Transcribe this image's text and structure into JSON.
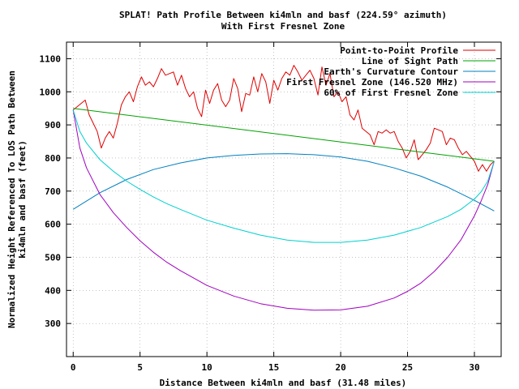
{
  "chart_data": {
    "type": "line",
    "title": "SPLAT! Path Profile Between ki4mln and basf (224.59° azimuth)",
    "subtitle": "With First Fresnel Zone",
    "xlabel": "Distance Between ki4mln and basf (31.48 miles)",
    "ylabel": "Normalized Height Referenced To LOS Path Between",
    "ylabel2": "ki4mln and basf (feet)",
    "xlim": [
      -0.5,
      32
    ],
    "ylim": [
      200,
      1150
    ],
    "x_ticks": [
      0,
      5,
      10,
      15,
      20,
      25,
      30
    ],
    "y_ticks": [
      300,
      400,
      500,
      600,
      700,
      800,
      900,
      1000,
      1100
    ],
    "grid": true,
    "legend_position": "top-right",
    "series": [
      {
        "name": "Point-to-Point Profile",
        "color": "#e00000",
        "x": [
          0,
          0.3,
          0.6,
          0.9,
          1.2,
          1.5,
          1.8,
          2.1,
          2.4,
          2.7,
          3.0,
          3.3,
          3.6,
          3.9,
          4.2,
          4.5,
          4.8,
          5.1,
          5.4,
          5.7,
          6.0,
          6.3,
          6.6,
          6.9,
          7.2,
          7.5,
          7.8,
          8.1,
          8.4,
          8.7,
          9.0,
          9.3,
          9.6,
          9.9,
          10.2,
          10.5,
          10.8,
          11.1,
          11.4,
          11.7,
          12.0,
          12.3,
          12.6,
          12.9,
          13.2,
          13.5,
          13.8,
          14.1,
          14.4,
          14.7,
          15.0,
          15.3,
          15.6,
          15.9,
          16.2,
          16.5,
          16.8,
          17.1,
          17.4,
          17.7,
          18.0,
          18.3,
          18.6,
          18.9,
          19.2,
          19.5,
          19.8,
          20.1,
          20.4,
          20.7,
          21.0,
          21.3,
          21.6,
          21.9,
          22.2,
          22.5,
          22.8,
          23.1,
          23.4,
          23.7,
          24.0,
          24.3,
          24.6,
          24.9,
          25.2,
          25.5,
          25.8,
          26.1,
          26.4,
          26.7,
          27.0,
          27.3,
          27.6,
          27.9,
          28.2,
          28.5,
          28.8,
          29.1,
          29.4,
          29.7,
          30.0,
          30.3,
          30.6,
          30.9,
          31.2,
          31.48
        ],
        "y": [
          945,
          955,
          965,
          975,
          930,
          905,
          880,
          830,
          860,
          880,
          860,
          905,
          960,
          985,
          1000,
          970,
          1015,
          1045,
          1020,
          1030,
          1015,
          1040,
          1070,
          1050,
          1055,
          1060,
          1020,
          1050,
          1010,
          985,
          1000,
          950,
          925,
          1005,
          965,
          1005,
          1025,
          975,
          955,
          975,
          1040,
          1010,
          940,
          995,
          990,
          1045,
          1000,
          1055,
          1030,
          965,
          1035,
          1005,
          1040,
          1060,
          1050,
          1080,
          1060,
          1035,
          1050,
          1065,
          1040,
          990,
          1075,
          1020,
          1055,
          985,
          1000,
          970,
          985,
          930,
          915,
          945,
          890,
          880,
          870,
          840,
          880,
          875,
          885,
          875,
          880,
          850,
          830,
          800,
          820,
          855,
          795,
          810,
          825,
          845,
          890,
          885,
          880,
          840,
          860,
          855,
          830,
          810,
          820,
          805,
          790,
          760,
          780,
          760,
          780,
          790
        ]
      },
      {
        "name": "Line of Sight Path",
        "color": "#00a000",
        "x": [
          0,
          31.48
        ],
        "y": [
          950,
          790
        ]
      },
      {
        "name": "Earth's Curvature Contour",
        "color": "#0080c0",
        "x": [
          0,
          2,
          4,
          6,
          8,
          10,
          12,
          14,
          16,
          18,
          20,
          22,
          24,
          26,
          28,
          30,
          31.48
        ],
        "y": [
          645,
          695,
          735,
          765,
          785,
          800,
          808,
          812,
          813,
          810,
          803,
          790,
          770,
          745,
          712,
          672,
          640
        ]
      },
      {
        "name": "First Fresnel Zone (146.520 MHz)",
        "color": "#a000c0",
        "x": [
          0,
          0.5,
          1,
          2,
          3,
          4,
          5,
          6,
          7,
          8,
          10,
          12,
          14,
          16,
          18,
          20,
          22,
          24,
          25,
          26,
          27,
          28,
          29,
          30,
          30.5,
          31,
          31.48
        ],
        "y": [
          945,
          830,
          770,
          690,
          635,
          590,
          550,
          515,
          485,
          460,
          415,
          383,
          360,
          346,
          340,
          341,
          352,
          377,
          397,
          422,
          457,
          500,
          553,
          625,
          670,
          720,
          790
        ]
      },
      {
        "name": "60% of First Fresnel Zone",
        "color": "#00d0d0",
        "x": [
          0,
          0.5,
          1,
          2,
          3,
          4,
          5,
          6,
          7,
          8,
          10,
          12,
          14,
          16,
          18,
          20,
          22,
          24,
          26,
          28,
          29,
          30,
          30.5,
          31,
          31.48
        ],
        "y": [
          945,
          880,
          845,
          795,
          760,
          730,
          705,
          682,
          662,
          645,
          612,
          588,
          567,
          552,
          545,
          545,
          552,
          567,
          590,
          623,
          645,
          676,
          698,
          730,
          790
        ]
      }
    ]
  }
}
